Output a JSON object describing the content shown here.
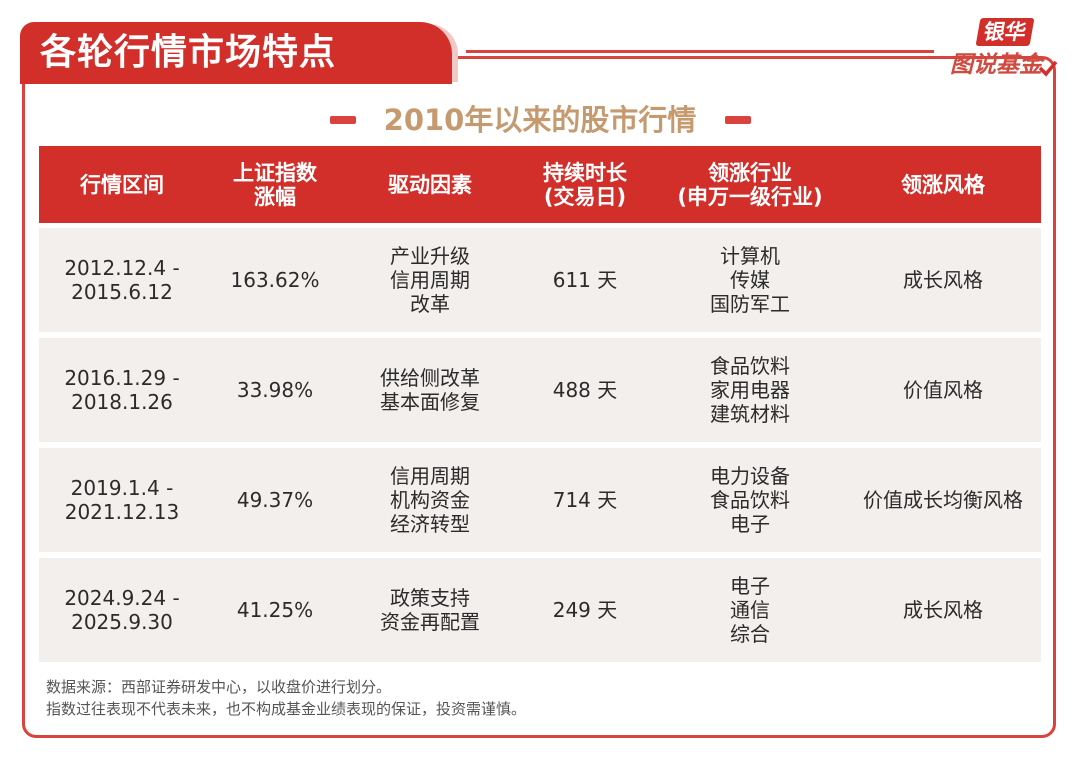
{
  "header": {
    "title": "各轮行情市场特点",
    "logo_top": "银华",
    "logo_bottom": "图说基金",
    "accent_color": "#d22f2a",
    "subtitle_color": "#c69a6f"
  },
  "subtitle": "2010年以来的股市行情",
  "table": {
    "columns": [
      "行情区间",
      "上证指数\n涨幅",
      "驱动因素",
      "持续时长\n(交易日)",
      "领涨行业\n(申万一级行业)",
      "领涨风格"
    ],
    "rows": [
      {
        "period": "2012.12.4 -\n2015.6.12",
        "gain": "163.62%",
        "drivers": "产业升级\n信用周期\n改革",
        "duration": "611 天",
        "industries": "计算机\n传媒\n国防军工",
        "style": "成长风格"
      },
      {
        "period": "2016.1.29 -\n2018.1.26",
        "gain": "33.98%",
        "drivers": "供给侧改革\n基本面修复",
        "duration": "488 天",
        "industries": "食品饮料\n家用电器\n建筑材料",
        "style": "价值风格"
      },
      {
        "period": "2019.1.4 -\n2021.12.13",
        "gain": "49.37%",
        "drivers": "信用周期\n机构资金\n经济转型",
        "duration": "714 天",
        "industries": "电力设备\n食品饮料\n电子",
        "style": "价值成长均衡风格"
      },
      {
        "period": "2024.9.24 -\n2025.9.30",
        "gain": "41.25%",
        "drivers": "政策支持\n资金再配置",
        "duration": "249 天",
        "industries": "电子\n通信\n综合",
        "style": "成长风格"
      }
    ]
  },
  "notes": [
    "数据来源：西部证券研发中心，以收盘价进行划分。",
    "指数过往表现不代表未来，也不构成基金业绩表现的保证，投资需谨慎。"
  ]
}
